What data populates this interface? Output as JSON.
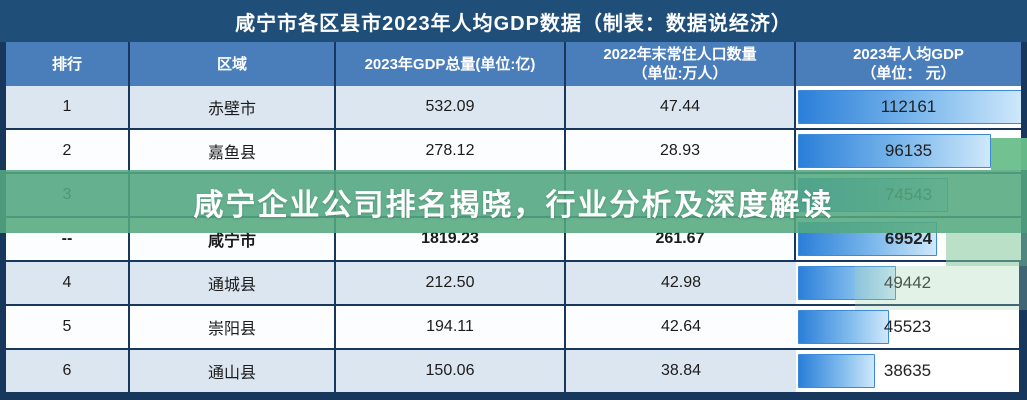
{
  "title": "咸宁市各区县市2023年人均GDP数据（制表：数据说经济）",
  "overlay": {
    "banner_text": "咸宁企业公司排名揭晓，行业分析及深度解读"
  },
  "colors": {
    "frame_navy": "#17375d",
    "title_bar_blue": "#1f4e79",
    "header_blue": "#4a7ebb",
    "row_light_blue": "#dce6f1",
    "rank_column_blue": "#d7e1ee",
    "data_bar_start": "#2b7fd9",
    "data_bar_end": "#cfe8fb",
    "watermark_green": "#54a980"
  },
  "chart_data": {
    "type": "table",
    "title": "咸宁市各区县市2023年人均GDP数据（制表：数据说经济）",
    "columns": [
      "排行",
      "区域",
      "2023年GDP总量(单位:亿)",
      "2022年末常住人口数量\n（单位:万人）",
      "2023年人均GDP\n（单位： 元）"
    ],
    "bar_column_note": "2023年人均GDP column rendered as proportional blue data bars, max value fills cell",
    "rows": [
      {
        "rank": "1",
        "region": "赤壁市",
        "gdp": "532.09",
        "population": "47.44",
        "percapita": 112161
      },
      {
        "rank": "2",
        "region": "嘉鱼县",
        "gdp": "278.12",
        "population": "28.93",
        "percapita": 96135
      },
      {
        "rank": "3",
        "region": "",
        "gdp": "",
        "population": "",
        "percapita": 74543
      },
      {
        "rank": "--",
        "region": "咸宁市",
        "gdp": "1819.23",
        "population": "261.67",
        "percapita": 69524
      },
      {
        "rank": "4",
        "region": "通城县",
        "gdp": "212.50",
        "population": "42.98",
        "percapita": 49442
      },
      {
        "rank": "5",
        "region": "崇阳县",
        "gdp": "194.11",
        "population": "42.64",
        "percapita": 45523
      },
      {
        "rank": "6",
        "region": "通山县",
        "gdp": "150.06",
        "population": "38.84",
        "percapita": 38635
      }
    ]
  }
}
